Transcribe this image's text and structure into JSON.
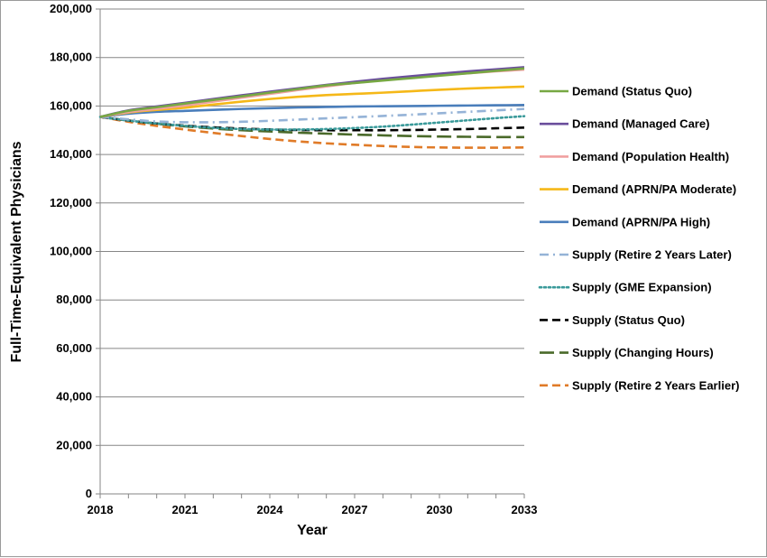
{
  "chart_data": {
    "type": "line",
    "xlabel": "Year",
    "ylabel": "Full-Time-Equivalent Physicians",
    "xlim": [
      2018,
      2033
    ],
    "ylim": [
      0,
      200000
    ],
    "x_ticks": [
      2018,
      2021,
      2024,
      2027,
      2030,
      2033
    ],
    "x_tick_labels": [
      "2018",
      "2021",
      "2024",
      "2027",
      "2030",
      "2033"
    ],
    "y_ticks": [
      0,
      20000,
      40000,
      60000,
      80000,
      100000,
      120000,
      140000,
      160000,
      180000,
      200000
    ],
    "y_tick_labels": [
      "0",
      "20,000",
      "40,000",
      "60,000",
      "80,000",
      "100,000",
      "120,000",
      "140,000",
      "160,000",
      "180,000",
      "200,000"
    ],
    "grid": "horizontal",
    "legend_position": "right",
    "x": [
      2018,
      2019,
      2020,
      2021,
      2022,
      2023,
      2024,
      2025,
      2026,
      2027,
      2028,
      2029,
      2030,
      2031,
      2032,
      2033
    ],
    "series": [
      {
        "name": "Demand (Status Quo)",
        "color": "#77a843",
        "dash": "solid",
        "values": [
          155500,
          158000,
          159500,
          161000,
          162500,
          164000,
          165500,
          167000,
          168500,
          169500,
          170500,
          171500,
          172500,
          173500,
          174500,
          175500
        ]
      },
      {
        "name": "Demand (Managed Care)",
        "color": "#6a4e9c",
        "dash": "solid",
        "values": [
          155500,
          158200,
          159800,
          161300,
          162900,
          164400,
          165900,
          167300,
          168700,
          170000,
          171200,
          172300,
          173300,
          174300,
          175100,
          176000
        ]
      },
      {
        "name": "Demand (Population Health)",
        "color": "#f0a0a0",
        "dash": "solid",
        "values": [
          155500,
          157500,
          158800,
          160200,
          161800,
          163400,
          165000,
          166600,
          168100,
          169500,
          170700,
          171800,
          172700,
          173500,
          174300,
          175000
        ]
      },
      {
        "name": "Demand (APRN/PA Moderate)",
        "color": "#f5b818",
        "dash": "solid",
        "values": [
          155500,
          157300,
          158400,
          159300,
          160600,
          161800,
          162900,
          163800,
          164500,
          165000,
          165500,
          166100,
          166700,
          167200,
          167600,
          168000
        ]
      },
      {
        "name": "Demand (APRN/PA High)",
        "color": "#4a7ebb",
        "dash": "solid",
        "values": [
          155500,
          156800,
          157600,
          158000,
          158400,
          158800,
          159100,
          159400,
          159600,
          159800,
          159900,
          160000,
          160100,
          160200,
          160300,
          160400
        ]
      },
      {
        "name": "Supply (Retire 2 Years Later)",
        "color": "#95b3d7",
        "dash": "dashdot",
        "values": [
          155500,
          154500,
          153600,
          153300,
          153300,
          153500,
          153900,
          154400,
          154900,
          155400,
          155900,
          156400,
          157000,
          157600,
          158200,
          158800
        ]
      },
      {
        "name": "Supply (GME Expansion)",
        "color": "#3a9a9a",
        "dash": "dotted",
        "values": [
          155500,
          154000,
          152800,
          151800,
          151000,
          150500,
          150300,
          150300,
          150500,
          150900,
          151500,
          152300,
          153200,
          154100,
          155000,
          155800
        ]
      },
      {
        "name": "Supply (Status Quo)",
        "color": "#000000",
        "dash": "dashed",
        "values": [
          155500,
          154000,
          152800,
          151900,
          151200,
          150700,
          150300,
          150100,
          150000,
          150000,
          150000,
          150100,
          150300,
          150500,
          150800,
          151100
        ]
      },
      {
        "name": "Supply (Changing Hours)",
        "color": "#4a6a2a",
        "dash": "longdash",
        "values": [
          155500,
          154000,
          152700,
          151600,
          150700,
          150000,
          149500,
          149000,
          148600,
          148200,
          147900,
          147600,
          147400,
          147300,
          147200,
          147200
        ]
      },
      {
        "name": "Supply (Retire 2 Years Earlier)",
        "color": "#e07b28",
        "dash": "dashed",
        "values": [
          155500,
          153500,
          151800,
          150300,
          148900,
          147600,
          146400,
          145400,
          144600,
          144000,
          143500,
          143100,
          142900,
          142800,
          142800,
          142900
        ]
      }
    ]
  }
}
